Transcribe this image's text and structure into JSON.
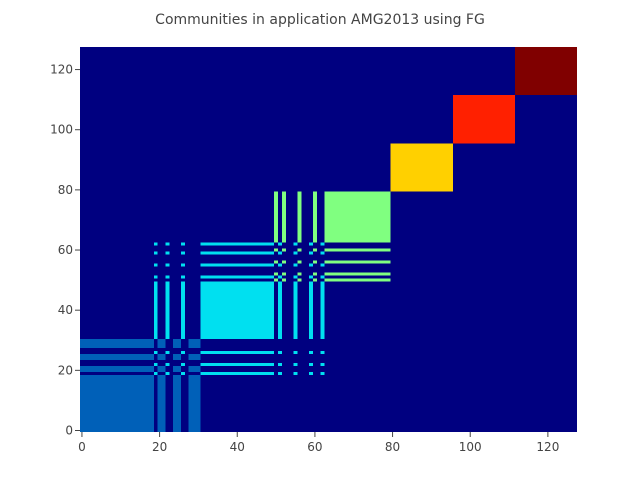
{
  "chart_data": {
    "type": "heatmap",
    "title": "Communities in application AMG2013 using FG",
    "xlabel": "",
    "ylabel": "",
    "xlim": [
      0,
      127
    ],
    "ylim": [
      0,
      127
    ],
    "x_ticks": [
      "0",
      "20",
      "40",
      "60",
      "80",
      "100",
      "120"
    ],
    "y_ticks": [
      "0",
      "20",
      "40",
      "60",
      "80",
      "100",
      "120"
    ],
    "background_color": "#000080",
    "communities": [
      {
        "id": 1,
        "color": "#0060b8",
        "x_ranges": [
          [
            0,
            19
          ],
          [
            20,
            22
          ],
          [
            24,
            26
          ],
          [
            28,
            31
          ]
        ],
        "y_ranges": [
          [
            0,
            19
          ],
          [
            20,
            22
          ],
          [
            24,
            26
          ],
          [
            28,
            31
          ]
        ]
      },
      {
        "id": 2,
        "color": "#00e0f0",
        "x_ranges": [
          [
            19,
            20
          ],
          [
            22,
            23
          ],
          [
            26,
            27
          ],
          [
            31,
            50
          ],
          [
            51,
            52
          ],
          [
            55,
            56
          ],
          [
            59,
            60
          ],
          [
            62,
            63
          ]
        ],
        "y_ranges": [
          [
            19,
            20
          ],
          [
            22,
            23
          ],
          [
            26,
            27
          ],
          [
            31,
            50
          ],
          [
            51,
            52
          ],
          [
            55,
            56
          ],
          [
            59,
            60
          ],
          [
            62,
            63
          ]
        ]
      },
      {
        "id": 3,
        "color": "#80ff80",
        "x_ranges": [
          [
            50,
            51
          ],
          [
            52,
            53
          ],
          [
            56,
            57
          ],
          [
            60,
            61
          ],
          [
            63,
            80
          ]
        ],
        "y_ranges": [
          [
            50,
            51
          ],
          [
            52,
            53
          ],
          [
            56,
            57
          ],
          [
            60,
            61
          ],
          [
            63,
            80
          ]
        ]
      },
      {
        "id": 4,
        "color": "#ffd000",
        "x_ranges": [
          [
            80,
            96
          ]
        ],
        "y_ranges": [
          [
            80,
            96
          ]
        ]
      },
      {
        "id": 5,
        "color": "#ff2000",
        "x_ranges": [
          [
            96,
            112
          ]
        ],
        "y_ranges": [
          [
            96,
            112
          ]
        ]
      },
      {
        "id": 6,
        "color": "#800000",
        "x_ranges": [
          [
            112,
            128
          ]
        ],
        "y_ranges": [
          [
            112,
            128
          ]
        ]
      }
    ]
  }
}
